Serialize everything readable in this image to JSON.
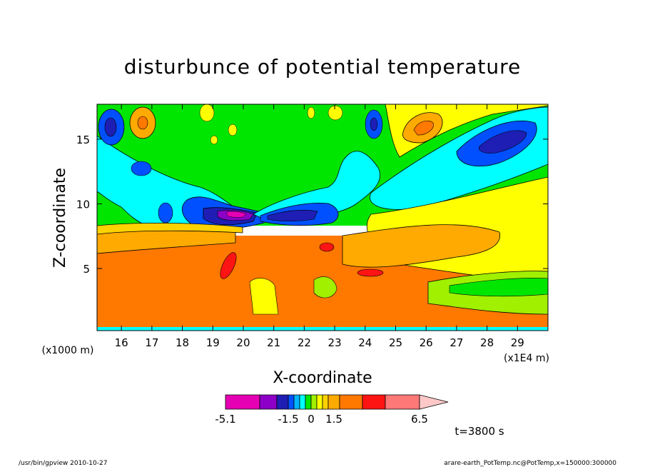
{
  "chart_data": {
    "type": "heatmap",
    "title": "disturbunce of potential temperature",
    "xlabel": "X-coordinate",
    "ylabel": "Z-coordinate",
    "x_unit_left": "(x1000 m)",
    "x_unit_right": "(x1E4 m)",
    "x_ticks": [
      16,
      17,
      18,
      19,
      20,
      21,
      22,
      23,
      24,
      25,
      26,
      27,
      28,
      29
    ],
    "y_ticks": [
      5,
      10,
      15
    ],
    "xlim": [
      15.2,
      30.0
    ],
    "ylim": [
      0.2,
      17.7
    ],
    "colorbar": {
      "colors": [
        "#e600b4",
        "#8c00c8",
        "#1e1eb4",
        "#0050ff",
        "#00b4ff",
        "#00ffff",
        "#00e600",
        "#a0f000",
        "#ffff00",
        "#ffd200",
        "#ffaa00",
        "#ff7800",
        "#ff1414",
        "#ff7878",
        "#ffc8c8"
      ],
      "tick_labels": [
        "-5.1",
        "-1.5",
        "0",
        "1.5",
        "6.5"
      ]
    },
    "time_label": "t=3800 s",
    "regions_sampled": [
      {
        "x": 16.0,
        "z": 16.2,
        "value": -2.3
      },
      {
        "x": 16.6,
        "z": 16.3,
        "value": 2.8
      },
      {
        "x": 16.6,
        "z": 12.7,
        "value": -2.0
      },
      {
        "x": 17.3,
        "z": 10.0,
        "value": -1.8
      },
      {
        "x": 19.8,
        "z": 8.9,
        "value": -3.6
      },
      {
        "x": 21.2,
        "z": 8.9,
        "value": -3.2
      },
      {
        "x": 24.2,
        "z": 16.2,
        "value": -2.0
      },
      {
        "x": 25.7,
        "z": 16.0,
        "value": 2.5
      },
      {
        "x": 27.7,
        "z": 15.5,
        "value": -2.1
      },
      {
        "x": 28.5,
        "z": 11.5,
        "value": -1.0
      },
      {
        "x": 19.4,
        "z": 5.2,
        "value": 4.5
      },
      {
        "x": 22.7,
        "z": 6.6,
        "value": 4.3
      },
      {
        "x": 24.2,
        "z": 4.7,
        "value": 4.5
      },
      {
        "x": 28.0,
        "z": 3.2,
        "value": 0.3
      }
    ]
  },
  "footer_left": "/usr/bin/gpview   2010-10-27",
  "footer_right": "arare-earth_PotTemp.nc@PotTemp,x=150000:300000"
}
